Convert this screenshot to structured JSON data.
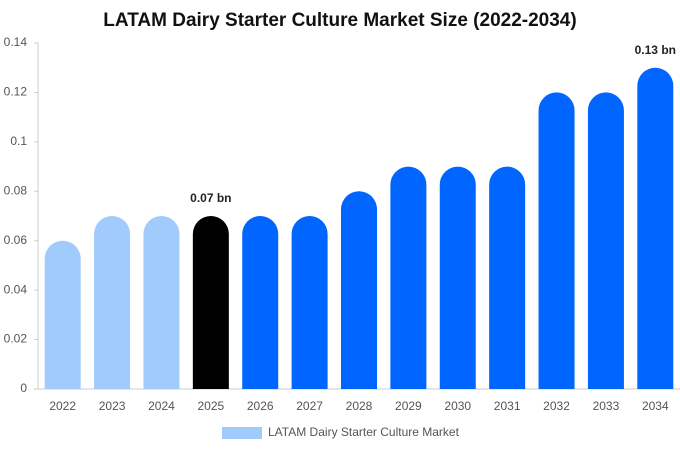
{
  "chart_data": {
    "type": "bar",
    "title": "LATAM Dairy Starter Culture Market Size (2022-2034)",
    "categories": [
      "2022",
      "2023",
      "2024",
      "2025",
      "2026",
      "2027",
      "2028",
      "2029",
      "2030",
      "2031",
      "2032",
      "2033",
      "2034"
    ],
    "series": [
      {
        "name": "LATAM Dairy Starter Culture Market",
        "color": "#a0cbfc",
        "values": [
          0.06,
          0.07,
          0.07,
          0.07,
          0.07,
          0.07,
          0.08,
          0.09,
          0.09,
          0.09,
          0.12,
          0.12,
          0.13
        ],
        "value_labels": [
          null,
          null,
          null,
          "0.07 bn",
          null,
          null,
          null,
          null,
          null,
          null,
          null,
          null,
          "0.13 bn"
        ],
        "colors": [
          "#a0cbfc",
          "#a0cbfc",
          "#a0cbfc",
          "#000000",
          "#0066ff",
          "#0066ff",
          "#0066ff",
          "#0066ff",
          "#0066ff",
          "#0066ff",
          "#0066ff",
          "#0066ff",
          "#0066ff"
        ]
      }
    ],
    "ylim": [
      0,
      0.14
    ],
    "yticks": [
      0,
      0.02,
      0.04,
      0.06,
      0.08,
      0.1,
      0.12,
      0.14
    ],
    "grid": false
  }
}
